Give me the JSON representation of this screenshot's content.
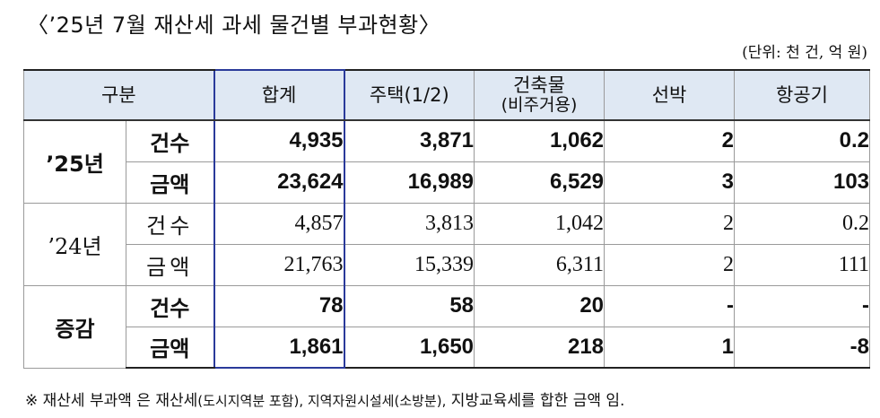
{
  "title": "〈’25년 7월 재산세 과세 물건별 부과현황〉",
  "unit": "(단위: 천 건, 억 원)",
  "table": {
    "headers": {
      "category": "구분",
      "total": "합계",
      "housing": "주택(1/2)",
      "building_line1": "건축물",
      "building_line2": "(비주거용)",
      "ship": "선박",
      "aircraft": "항공기"
    },
    "groups": [
      {
        "year": "’25년",
        "rows": [
          {
            "metric": "건수",
            "values": [
              "4,935",
              "3,871",
              "1,062",
              "2",
              "0.2"
            ]
          },
          {
            "metric": "금액",
            "values": [
              "23,624",
              "16,989",
              "6,529",
              "3",
              "103"
            ]
          }
        ]
      },
      {
        "year": "’24년",
        "rows": [
          {
            "metric": "건수",
            "values": [
              "4,857",
              "3,813",
              "1,042",
              "2",
              "0.2"
            ]
          },
          {
            "metric": "금액",
            "values": [
              "21,763",
              "15,339",
              "6,311",
              "2",
              "111"
            ]
          }
        ]
      },
      {
        "year": "증감",
        "rows": [
          {
            "metric": "건수",
            "values": [
              "78",
              "58",
              "20",
              "-",
              "-"
            ]
          },
          {
            "metric": "금액",
            "values": [
              "1,861",
              "1,650",
              "218",
              "1",
              "-8"
            ]
          }
        ]
      }
    ]
  },
  "note": {
    "part1": "※ 재산세 부과액 은 재산세",
    "part2": "(도시지역분 포함), 지역자원시설세(소방분),",
    "part3": " 지방교육세를 합한 금액 임."
  }
}
